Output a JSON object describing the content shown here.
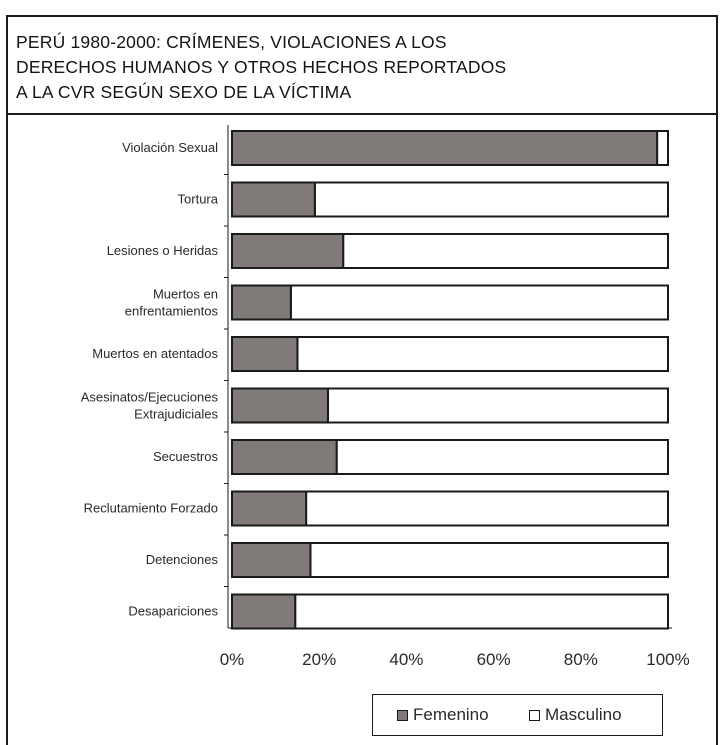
{
  "title_lines": [
    "PERÚ 1980-2000: CRÍMENES, VIOLACIONES A LOS",
    "DERECHOS HUMANOS Y OTROS HECHOS REPORTADOS",
    "A LA CVR SEGÚN SEXO DE LA VÍCTIMA"
  ],
  "colors": {
    "femenino": "#807a78",
    "masculino": "#ffffff",
    "outline": "#1a1a1a"
  },
  "chart_data": {
    "type": "bar",
    "orientation": "horizontal",
    "stacked": "percent",
    "title": "PERÚ 1980-2000: CRÍMENES, VIOLACIONES A LOS DERECHOS HUMANOS Y OTROS HECHOS REPORTADOS A LA CVR SEGÚN SEXO DE LA VÍCTIMA",
    "categories": [
      [
        "Violación Sexual"
      ],
      [
        "Tortura"
      ],
      [
        "Lesiones o Heridas"
      ],
      [
        "Muertos en",
        "enfrentamientos"
      ],
      [
        "Muertos en atentados"
      ],
      [
        "Asesinatos/Ejecuciones",
        "Extrajudiciales"
      ],
      [
        "Secuestros"
      ],
      [
        "Reclutamiento Forzado"
      ],
      [
        "Detenciones"
      ],
      [
        "Desapariciones"
      ]
    ],
    "series": [
      {
        "name": "Femenino",
        "values": [
          97.5,
          19,
          25.5,
          13.5,
          15,
          22,
          24,
          17,
          18,
          14.5
        ]
      },
      {
        "name": "Masculino",
        "values": [
          2.5,
          81,
          74.5,
          86.5,
          85,
          78,
          76,
          83,
          82,
          85.5
        ]
      }
    ],
    "x_ticks": [
      "0%",
      "20%",
      "40%",
      "60%",
      "80%",
      "100%"
    ],
    "xlim": [
      0,
      100
    ],
    "grid": false,
    "legend_position": "bottom-right",
    "legend": [
      "Femenino",
      "Masculino"
    ]
  }
}
